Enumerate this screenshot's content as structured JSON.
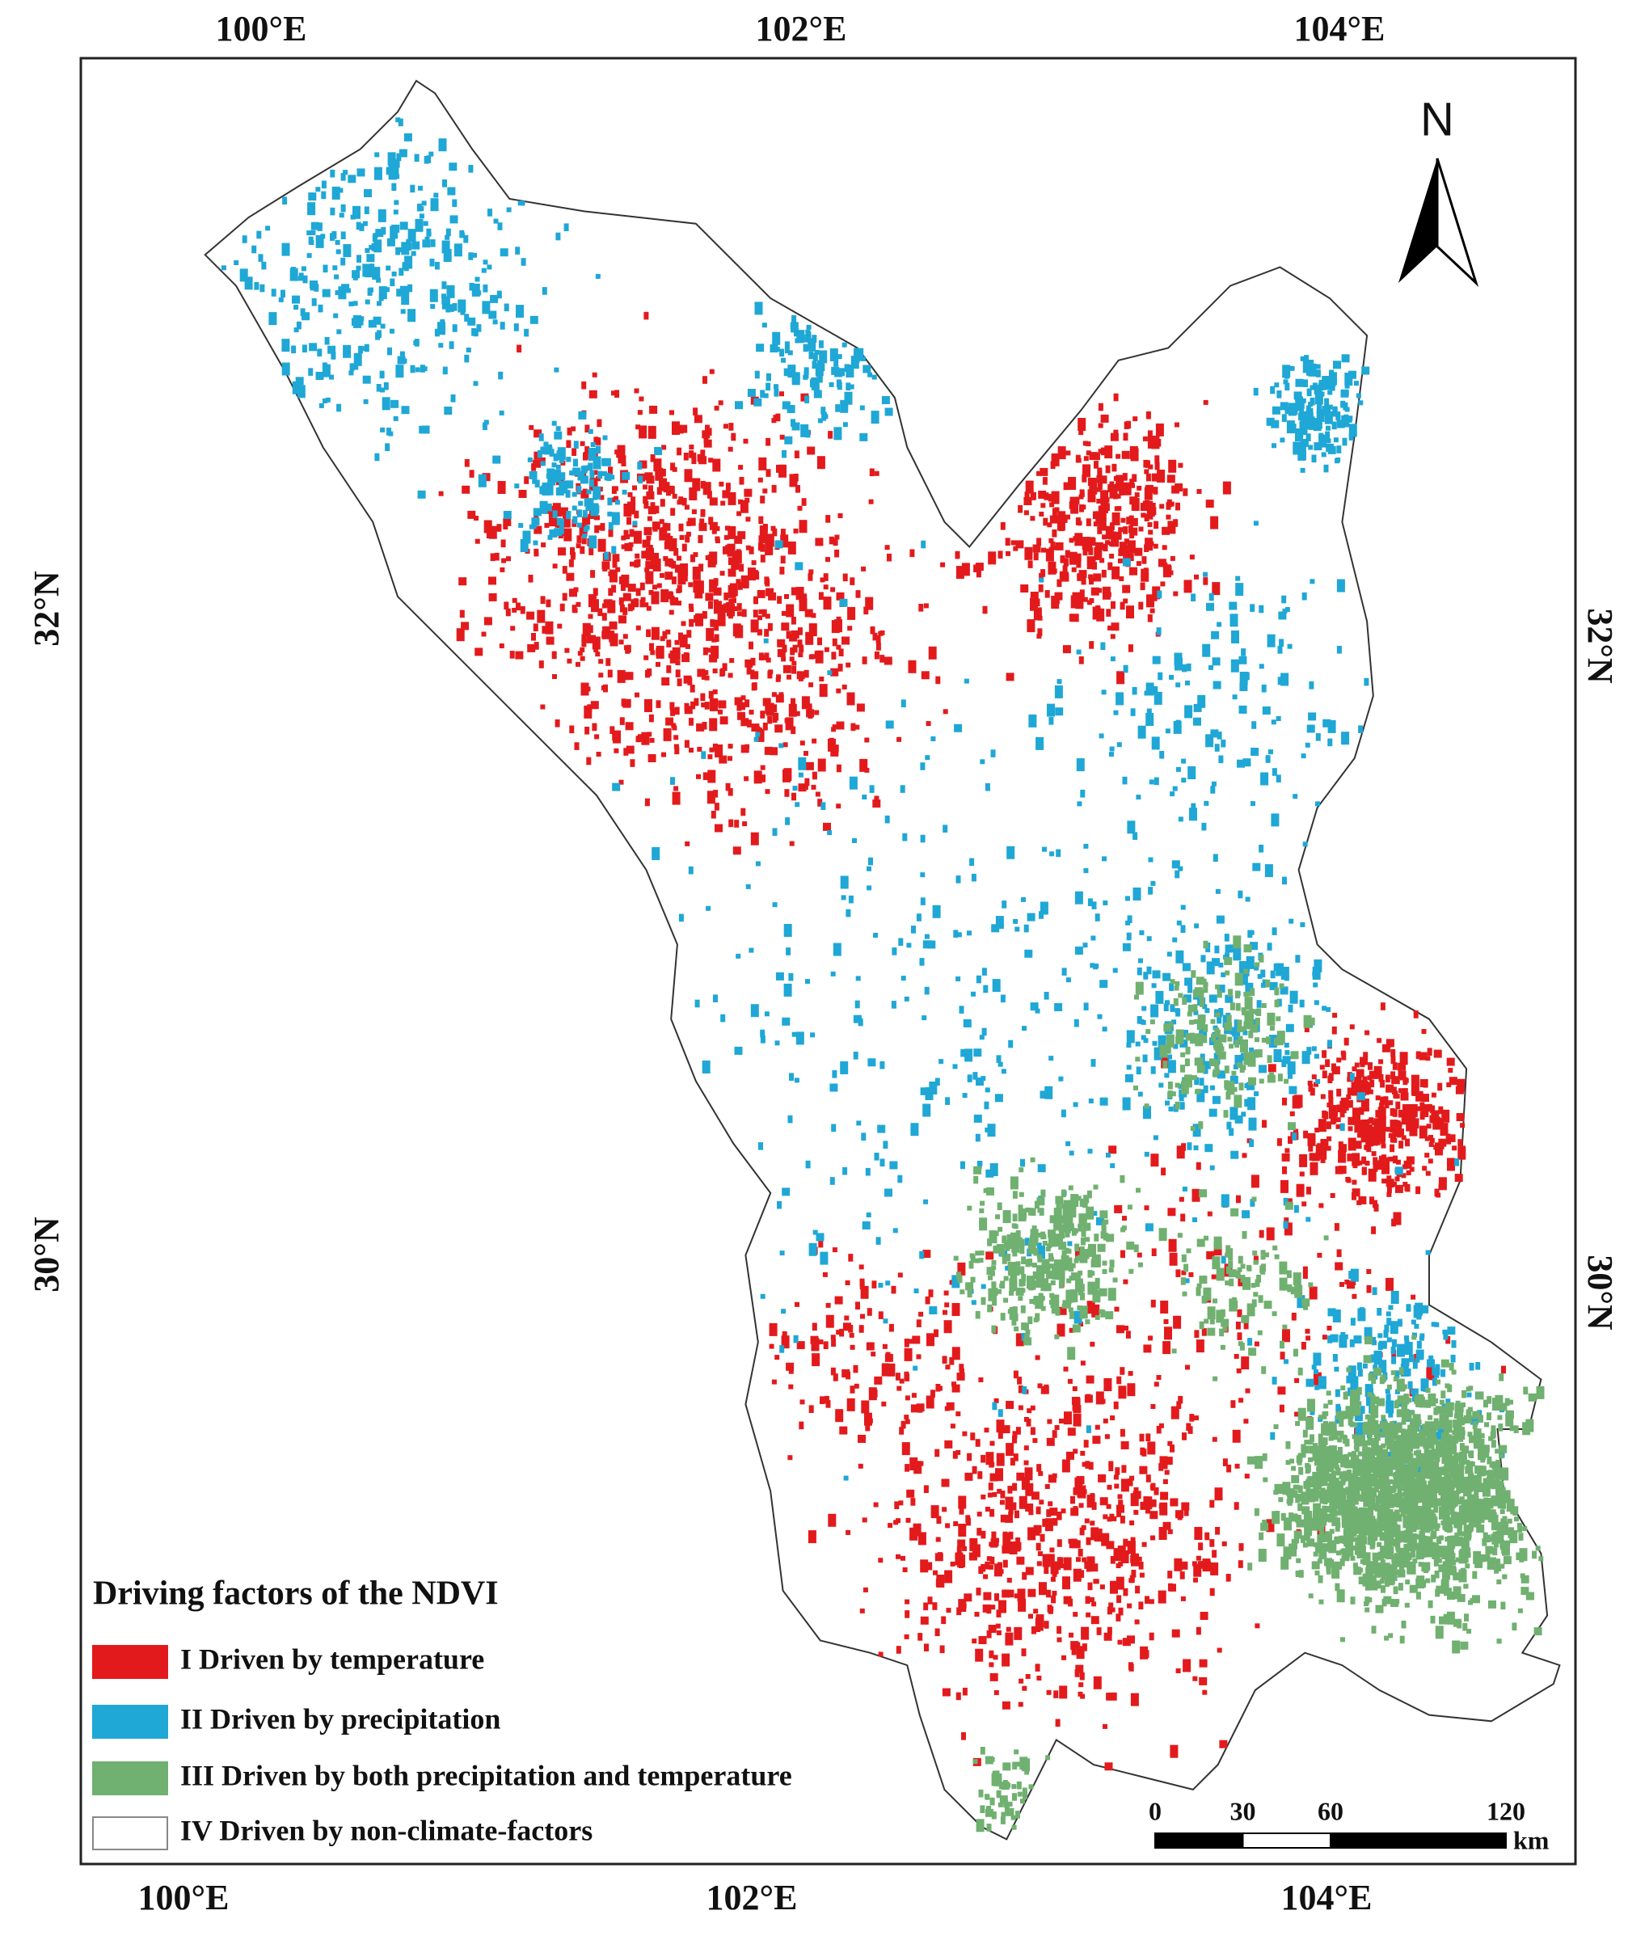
{
  "map": {
    "graticule": {
      "top": [
        "100°E",
        "102°E",
        "104°E"
      ],
      "bottom": [
        "100°E",
        "102°E",
        "104°E"
      ],
      "left": [
        "32°N",
        "30°N"
      ],
      "right": [
        "32°N",
        "30°N"
      ]
    },
    "north_label": "N",
    "legend": {
      "title": "Driving factors of the NDVI",
      "items": [
        {
          "label": "I Driven by temperature",
          "color": "#e31a1c"
        },
        {
          "label": "II Driven by precipitation",
          "color": "#1fa7d6"
        },
        {
          "label": "III Driven by both precipitation and temperature",
          "color": "#70b070"
        },
        {
          "label": "IV Driven by non-climate-factors",
          "color": "#ffffff"
        }
      ]
    },
    "scale_bar": {
      "ticks": [
        0,
        30,
        60,
        120
      ],
      "unit": "km"
    }
  }
}
